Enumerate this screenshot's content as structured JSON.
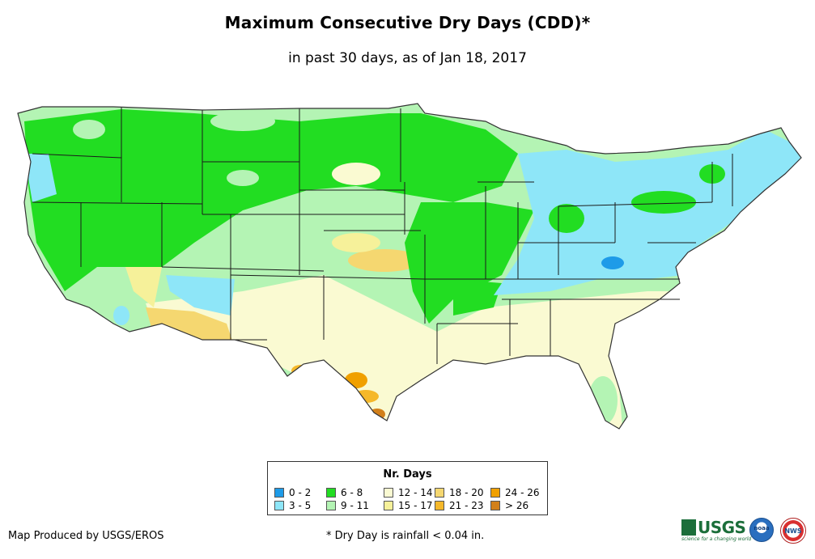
{
  "header": {
    "title": "Maximum Consecutive Dry Days (CDD)*",
    "subtitle": "in past 30 days, as of Jan 18, 2017"
  },
  "map": {
    "region": "Contiguous United States",
    "colors": {
      "state_border": "#1a1a1a",
      "outline": "#333333"
    }
  },
  "legend": {
    "title": "Nr. Days",
    "items": [
      {
        "label": "0 - 2",
        "color": "#1e9be8"
      },
      {
        "label": "3 - 5",
        "color": "#8ee6f8"
      },
      {
        "label": "6 - 8",
        "color": "#22dd22"
      },
      {
        "label": "9 - 11",
        "color": "#b4f4b4"
      },
      {
        "label": "12 - 14",
        "color": "#fafad2"
      },
      {
        "label": "15 - 17",
        "color": "#f6f19a"
      },
      {
        "label": "18 - 20",
        "color": "#f5d770"
      },
      {
        "label": "21 - 23",
        "color": "#f5b82a"
      },
      {
        "label": "24 - 26",
        "color": "#f0a000"
      },
      {
        "label": "> 26",
        "color": "#d2801a"
      }
    ]
  },
  "footer": {
    "credit": "Map Produced by USGS/EROS",
    "footnote": "* Dry Day is rainfall < 0.04 in.",
    "logos": [
      "USGS",
      "noaa",
      "NWS"
    ],
    "usgs_tagline": "science for a changing world"
  }
}
